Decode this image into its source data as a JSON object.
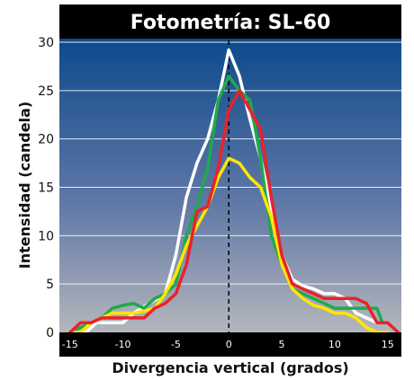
{
  "chart_data": {
    "type": "line",
    "title": "Fotometría: SL-60",
    "xlabel": "Divergencia vertical (grados)",
    "ylabel": "Intensidad (candela)",
    "xlim": [
      -16,
      16.3
    ],
    "ylim": [
      0,
      30
    ],
    "x_ticks": [
      -15,
      -10,
      -5,
      0,
      5,
      10,
      15
    ],
    "y_ticks": [
      0,
      5,
      10,
      15,
      20,
      25,
      30
    ],
    "grid": true,
    "zero_reference_line": "dashed-vertical",
    "series": [
      {
        "color": "#ffffff",
        "points": [
          [
            -15,
            0
          ],
          [
            -13.5,
            0
          ],
          [
            -12.5,
            1
          ],
          [
            -10,
            1
          ],
          [
            -9,
            2
          ],
          [
            -7.5,
            3
          ],
          [
            -6,
            4
          ],
          [
            -5,
            8
          ],
          [
            -4,
            14
          ],
          [
            -3,
            17.5
          ],
          [
            -2,
            20
          ],
          [
            -1,
            24
          ],
          [
            0,
            29.2
          ],
          [
            1,
            26.5
          ],
          [
            2,
            22
          ],
          [
            3,
            18
          ],
          [
            4,
            13
          ],
          [
            5,
            8
          ],
          [
            6,
            5.5
          ],
          [
            7,
            4.8
          ],
          [
            8,
            4.5
          ],
          [
            9,
            4
          ],
          [
            10,
            4
          ],
          [
            11,
            3.5
          ],
          [
            12,
            2
          ],
          [
            13,
            1.5
          ],
          [
            14,
            1
          ],
          [
            15,
            1
          ]
        ]
      },
      {
        "color": "#22a84a",
        "points": [
          [
            -15,
            0
          ],
          [
            -13,
            1
          ],
          [
            -12,
            1.5
          ],
          [
            -11,
            2.5
          ],
          [
            -10,
            2.8
          ],
          [
            -9,
            3
          ],
          [
            -8,
            2.5
          ],
          [
            -7,
            3.5
          ],
          [
            -6,
            4
          ],
          [
            -5,
            5
          ],
          [
            -4,
            10
          ],
          [
            -3,
            13
          ],
          [
            -2,
            17
          ],
          [
            -1,
            24
          ],
          [
            0,
            26.5
          ],
          [
            1,
            25
          ],
          [
            2,
            24
          ],
          [
            3,
            18
          ],
          [
            4,
            10
          ],
          [
            5,
            7
          ],
          [
            6,
            4.5
          ],
          [
            7,
            4
          ],
          [
            8,
            3.5
          ],
          [
            9,
            3
          ],
          [
            10,
            2.5
          ],
          [
            11,
            2.5
          ],
          [
            12,
            2.5
          ],
          [
            13,
            2.5
          ],
          [
            14,
            2.5
          ],
          [
            14.5,
            1
          ]
        ]
      },
      {
        "color": "#ffe600",
        "points": [
          [
            -15,
            0
          ],
          [
            -14,
            0
          ],
          [
            -13,
            1
          ],
          [
            -12,
            1.5
          ],
          [
            -11,
            2
          ],
          [
            -10,
            2
          ],
          [
            -9,
            2
          ],
          [
            -8,
            2.2
          ],
          [
            -7,
            2.5
          ],
          [
            -6,
            4
          ],
          [
            -5,
            6
          ],
          [
            -4,
            9
          ],
          [
            -3,
            11
          ],
          [
            -2,
            13
          ],
          [
            -1,
            16
          ],
          [
            0,
            18
          ],
          [
            1,
            17.5
          ],
          [
            2,
            16
          ],
          [
            3,
            15
          ],
          [
            4,
            12
          ],
          [
            5,
            7
          ],
          [
            6,
            4.5
          ],
          [
            7,
            3.5
          ],
          [
            8,
            2.8
          ],
          [
            9,
            2.5
          ],
          [
            10,
            2
          ],
          [
            11,
            2
          ],
          [
            12,
            1.5
          ],
          [
            13,
            0.5
          ],
          [
            14,
            0
          ],
          [
            15,
            0
          ]
        ]
      },
      {
        "color": "#e8232a",
        "points": [
          [
            -15,
            0
          ],
          [
            -14,
            1
          ],
          [
            -13,
            1
          ],
          [
            -12,
            1.5
          ],
          [
            -11,
            1.5
          ],
          [
            -10,
            1.5
          ],
          [
            -9,
            1.5
          ],
          [
            -8,
            1.5
          ],
          [
            -7,
            2.5
          ],
          [
            -6,
            3
          ],
          [
            -5,
            4
          ],
          [
            -4,
            7
          ],
          [
            -3,
            12.5
          ],
          [
            -2,
            13
          ],
          [
            -1,
            17
          ],
          [
            0,
            23
          ],
          [
            1,
            25
          ],
          [
            2,
            23
          ],
          [
            3,
            21
          ],
          [
            4,
            14
          ],
          [
            5,
            8
          ],
          [
            6,
            5
          ],
          [
            7,
            4.5
          ],
          [
            8,
            4
          ],
          [
            9,
            3.5
          ],
          [
            10,
            3.5
          ],
          [
            11,
            3.5
          ],
          [
            12,
            3.5
          ],
          [
            13,
            3
          ],
          [
            14,
            1
          ],
          [
            15,
            1
          ],
          [
            16,
            0
          ]
        ]
      }
    ]
  }
}
